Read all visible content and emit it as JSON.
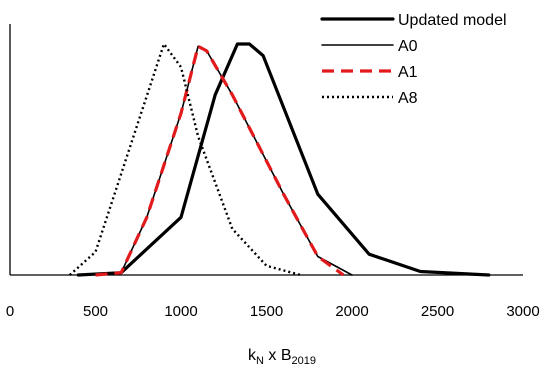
{
  "chart_data": {
    "type": "line",
    "xlabel": {
      "main": "k",
      "sub1": "N",
      "mid": " x B",
      "sub2": "2019"
    },
    "ylabel": "",
    "xlim": [
      0,
      3000
    ],
    "xticks": [
      "0",
      "500",
      "1000",
      "1500",
      "2000",
      "2500",
      "3000"
    ],
    "grid": false,
    "legend_position": "top-right",
    "series": [
      {
        "name": "Updated model",
        "color": "#000000",
        "style": "solid-thick",
        "points": [
          [
            400,
            0
          ],
          [
            650,
            0.01
          ],
          [
            1000,
            0.25
          ],
          [
            1200,
            0.78
          ],
          [
            1330,
            1.0
          ],
          [
            1400,
            1.0
          ],
          [
            1480,
            0.95
          ],
          [
            1800,
            0.35
          ],
          [
            2100,
            0.09
          ],
          [
            2400,
            0.015
          ],
          [
            2800,
            0.0
          ]
        ]
      },
      {
        "name": "A0",
        "color": "#000000",
        "style": "solid-thin",
        "points": [
          [
            450,
            0
          ],
          [
            650,
            0.01
          ],
          [
            800,
            0.25
          ],
          [
            1000,
            0.7
          ],
          [
            1100,
            0.99
          ],
          [
            1150,
            0.97
          ],
          [
            1300,
            0.78
          ],
          [
            1600,
            0.35
          ],
          [
            1800,
            0.08
          ],
          [
            2000,
            0.0
          ]
        ]
      },
      {
        "name": "A1",
        "color": "#e31a1c",
        "style": "dashed",
        "points": [
          [
            500,
            0
          ],
          [
            650,
            0.01
          ],
          [
            800,
            0.25
          ],
          [
            1000,
            0.7
          ],
          [
            1100,
            0.99
          ],
          [
            1150,
            0.97
          ],
          [
            1300,
            0.78
          ],
          [
            1600,
            0.35
          ],
          [
            1800,
            0.08
          ],
          [
            1950,
            0.0
          ]
        ]
      },
      {
        "name": "A8",
        "color": "#000000",
        "style": "dotted",
        "points": [
          [
            350,
            0
          ],
          [
            500,
            0.1
          ],
          [
            700,
            0.55
          ],
          [
            900,
            1.0
          ],
          [
            1000,
            0.9
          ],
          [
            1100,
            0.6
          ],
          [
            1300,
            0.2
          ],
          [
            1500,
            0.04
          ],
          [
            1700,
            0.0
          ]
        ]
      }
    ]
  }
}
